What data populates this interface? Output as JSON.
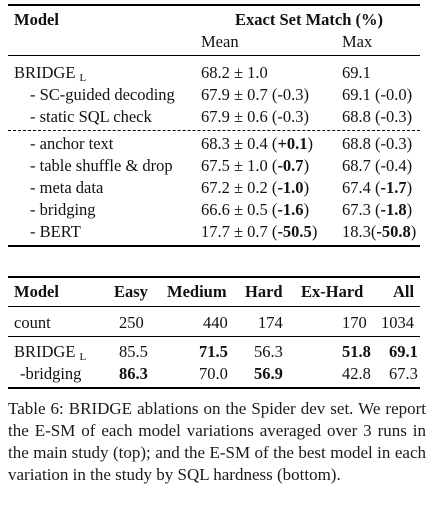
{
  "table1": {
    "col_model": "Model",
    "col_esm": "Exact Set Match (%)",
    "col_mean": "Mean",
    "col_max": "Max",
    "rows": [
      {
        "model": "BRIDGE",
        "sub": "L",
        "mean": "68.2 ± 1.0",
        "max": "69.1"
      },
      {
        "model": "- SC-guided decoding",
        "mean": "67.9 ± 0.7 (-0.3)",
        "max": "69.1 (-0.0)"
      },
      {
        "model": "- static SQL check",
        "mean": "67.9 ± 0.6 (-0.3)",
        "max": "68.8 (-0.3)"
      },
      {
        "model": "- anchor text",
        "mean_a": "68.3 ± 0.4 (",
        "mean_b": "+0.1",
        "mean_c": ")",
        "max": "68.8 (-0.3)"
      },
      {
        "model": "- table shuffle & drop",
        "mean_a": "67.5 ± 1.0 (",
        "mean_b": "-0.7",
        "mean_c": ")",
        "max": "68.7 (-0.4)"
      },
      {
        "model": "- meta data",
        "mean_a": "67.2 ± 0.2 (",
        "mean_b": "-1.0",
        "mean_c": ")",
        "max_a": "67.4 (",
        "max_b": "-1.7",
        "max_c": ")"
      },
      {
        "model": "- bridging",
        "mean_a": "66.6 ± 0.5 (",
        "mean_b": "-1.6",
        "mean_c": ")",
        "max_a": "67.3 (",
        "max_b": "-1.8",
        "max_c": ")"
      },
      {
        "model": "- BERT",
        "mean_a": "17.7 ± 0.7 (",
        "mean_b": "-50.5",
        "mean_c": ")",
        "max_a": "18.3(",
        "max_b": "-50.8",
        "max_c": ")"
      }
    ]
  },
  "table2": {
    "headers": [
      "Model",
      "Easy",
      "Medium",
      "Hard",
      "Ex-Hard",
      "All"
    ],
    "rows": [
      {
        "model": "count",
        "vals": [
          "250",
          "440",
          "174",
          "170",
          "1034"
        ]
      },
      {
        "model": "BRIDGE",
        "sub": "L",
        "vals": [
          "85.5",
          "71.5",
          "56.3",
          "51.8",
          "69.1"
        ]
      },
      {
        "model": "-bridging",
        "vals": [
          "86.3",
          "70.0",
          "56.9",
          "42.8",
          "67.3"
        ]
      }
    ]
  },
  "caption": "Table 6: BRIDGE ablations on the Spider dev set. We report the E-SM of each model variations averaged over 3 runs in the main study (top); and the E-SM of the best model in each variation in the study by SQL hardness (bottom)."
}
